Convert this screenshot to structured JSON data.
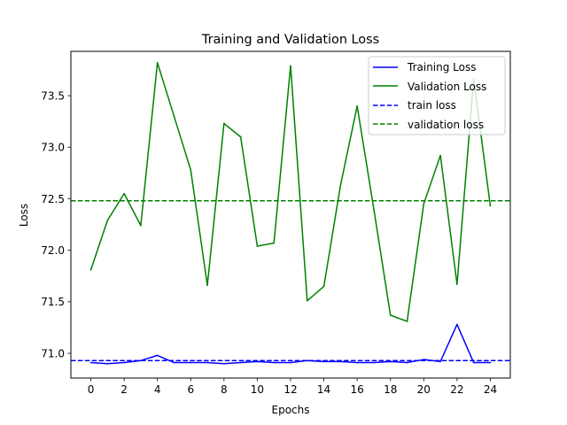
{
  "chart_data": {
    "type": "line",
    "title": "Training and Validation Loss",
    "xlabel": "Epochs",
    "ylabel": "Loss",
    "xlim": [
      -1.2,
      25.2
    ],
    "ylim": [
      70.76,
      73.93
    ],
    "x_ticks": [
      0,
      2,
      4,
      6,
      8,
      10,
      12,
      14,
      16,
      18,
      20,
      22,
      24
    ],
    "y_ticks": [
      71.0,
      71.5,
      72.0,
      72.5,
      73.0,
      73.5
    ],
    "y_tick_labels": [
      "71.0",
      "71.5",
      "72.0",
      "72.5",
      "73.0",
      "73.5"
    ],
    "grid": false,
    "legend_position": "top-right",
    "x": [
      0,
      1,
      2,
      3,
      4,
      5,
      6,
      7,
      8,
      9,
      10,
      11,
      12,
      13,
      14,
      15,
      16,
      17,
      18,
      19,
      20,
      21,
      22,
      23,
      24
    ],
    "series": [
      {
        "name": "Training Loss",
        "color": "#0000ff",
        "style": "solid",
        "values": [
          70.91,
          70.9,
          70.91,
          70.93,
          70.98,
          70.91,
          70.91,
          70.91,
          70.9,
          70.91,
          70.92,
          70.91,
          70.91,
          70.93,
          70.92,
          70.92,
          70.91,
          70.91,
          70.92,
          70.91,
          70.94,
          70.92,
          71.28,
          70.91,
          70.91
        ]
      },
      {
        "name": "Validation Loss",
        "color": "#008000",
        "style": "solid",
        "values": [
          71.81,
          72.29,
          72.55,
          72.24,
          73.82,
          73.3,
          72.78,
          71.66,
          73.23,
          73.1,
          72.04,
          72.07,
          73.79,
          71.51,
          71.65,
          72.63,
          73.4,
          72.4,
          71.37,
          71.31,
          72.45,
          72.92,
          71.67,
          73.66,
          72.43
        ]
      }
    ],
    "reference_lines": [
      {
        "name": "train loss",
        "color": "#0000ff",
        "style": "dashed",
        "y": 70.93
      },
      {
        "name": "validation loss",
        "color": "#008000",
        "style": "dashed",
        "y": 72.48
      }
    ]
  }
}
